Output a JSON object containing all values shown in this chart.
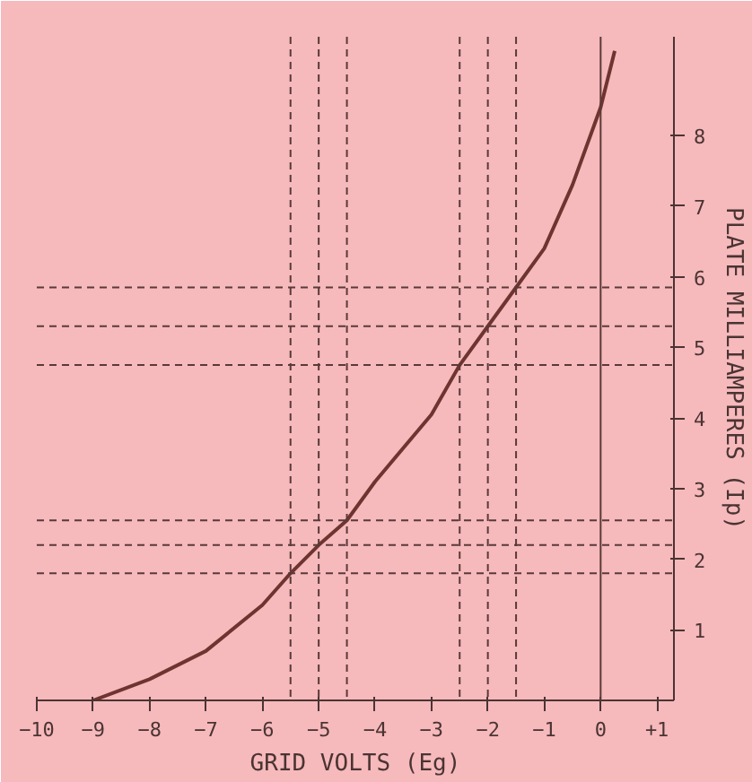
{
  "chart_data": {
    "type": "line",
    "xlabel": "GRID VOLTS (Eg)",
    "ylabel": "PLATE MILLIAMPERES (Ip)",
    "x": [
      -9,
      -8,
      -7,
      -6,
      -5.5,
      -5,
      -4.5,
      -4,
      -3,
      -2.5,
      -2,
      -1.5,
      -1,
      -0.5,
      0,
      0.25
    ],
    "series": [
      {
        "color": "#6e3530",
        "values": [
          0,
          0.3,
          0.7,
          1.35,
          1.8,
          2.2,
          2.55,
          3.1,
          4.05,
          4.75,
          5.3,
          5.85,
          6.4,
          7.3,
          8.4,
          9.2
        ]
      }
    ],
    "xlim": [
      -10,
      1.3
    ],
    "ylim": [
      0,
      9.4
    ],
    "xticks": [
      -10,
      -9,
      -8,
      -7,
      -6,
      -5,
      -4,
      -3,
      -2,
      -1,
      0,
      {
        "value": 1,
        "label": "+1"
      }
    ],
    "yticks": [
      1,
      2,
      3,
      4,
      5,
      6,
      7,
      8
    ],
    "grid": false,
    "marker": "none",
    "line_style": "solid",
    "ref_lines": [
      {
        "axis": "x",
        "value": 0,
        "line_style": "solid",
        "color": "#5a3a38"
      },
      {
        "axis": "x",
        "value": -5.5,
        "line_style": "dashed",
        "color": "#5a3a38"
      },
      {
        "axis": "x",
        "value": -5,
        "line_style": "dashed",
        "color": "#5a3a38"
      },
      {
        "axis": "x",
        "value": -4.5,
        "line_style": "dashed",
        "color": "#5a3a38"
      },
      {
        "axis": "x",
        "value": -2.5,
        "line_style": "dashed",
        "color": "#5a3a38"
      },
      {
        "axis": "x",
        "value": -2,
        "line_style": "dashed",
        "color": "#5a3a38"
      },
      {
        "axis": "x",
        "value": -1.5,
        "line_style": "dashed",
        "color": "#5a3a38"
      },
      {
        "axis": "y",
        "value": 1.8,
        "line_style": "dashed",
        "color": "#5a3a38"
      },
      {
        "axis": "y",
        "value": 2.2,
        "line_style": "dashed",
        "color": "#5a3a38"
      },
      {
        "axis": "y",
        "value": 2.55,
        "line_style": "dashed",
        "color": "#5a3a38"
      },
      {
        "axis": "y",
        "value": 4.75,
        "line_style": "dashed",
        "color": "#5a3a38"
      },
      {
        "axis": "y",
        "value": 5.3,
        "line_style": "dashed",
        "color": "#5a3a38"
      },
      {
        "axis": "y",
        "value": 5.85,
        "line_style": "dashed",
        "color": "#5a3a38"
      }
    ]
  }
}
